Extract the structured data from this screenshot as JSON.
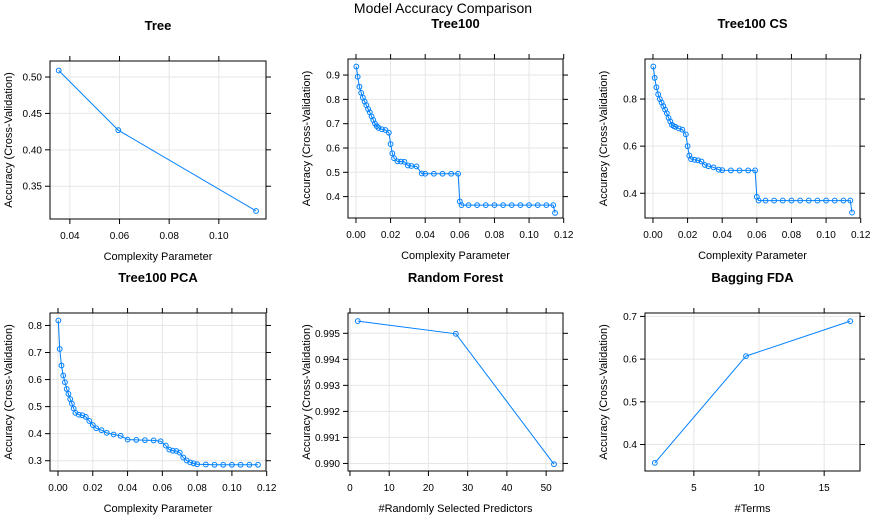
{
  "title": "Model Accuracy Comparison",
  "colors": {
    "line": "#0080FF",
    "point": "#0080FF",
    "grid": "#E6E6E6",
    "frame": "#000000"
  },
  "chart_data": [
    {
      "type": "line",
      "title": "Tree",
      "xlabel": "Complexity Parameter",
      "ylabel": "Accuracy (Cross-Validation)",
      "xlim": [
        0.032,
        0.119
      ],
      "ylim": [
        0.305,
        0.522
      ],
      "xticks": [
        0.04,
        0.06,
        0.08,
        0.1
      ],
      "yticks": [
        0.35,
        0.4,
        0.45,
        0.5
      ],
      "x": [
        0.0355,
        0.0595,
        0.115
      ],
      "y": [
        0.509,
        0.427,
        0.316
      ]
    },
    {
      "type": "line",
      "title": "Tree100",
      "xlabel": "Complexity Parameter",
      "ylabel": "Accuracy (Cross-Validation)",
      "xlim": [
        -0.0046,
        0.1196
      ],
      "ylim": [
        0.312,
        0.966
      ],
      "xticks": [
        0.0,
        0.02,
        0.04,
        0.06,
        0.08,
        0.1,
        0.12
      ],
      "yticks": [
        0.4,
        0.5,
        0.6,
        0.7,
        0.8,
        0.9
      ],
      "x": [
        0.0002,
        0.001,
        0.002,
        0.003,
        0.004,
        0.005,
        0.006,
        0.007,
        0.008,
        0.009,
        0.01,
        0.011,
        0.012,
        0.013,
        0.015,
        0.017,
        0.019,
        0.02,
        0.021,
        0.022,
        0.024,
        0.026,
        0.028,
        0.03,
        0.032,
        0.035,
        0.038,
        0.04,
        0.045,
        0.05,
        0.055,
        0.059,
        0.06,
        0.061,
        0.065,
        0.07,
        0.075,
        0.08,
        0.085,
        0.09,
        0.095,
        0.1,
        0.105,
        0.11,
        0.114,
        0.115
      ],
      "y": [
        0.935,
        0.893,
        0.852,
        0.827,
        0.807,
        0.791,
        0.776,
        0.76,
        0.747,
        0.73,
        0.715,
        0.7,
        0.69,
        0.683,
        0.677,
        0.674,
        0.663,
        0.616,
        0.578,
        0.558,
        0.545,
        0.544,
        0.543,
        0.528,
        0.526,
        0.524,
        0.495,
        0.494,
        0.494,
        0.494,
        0.494,
        0.494,
        0.38,
        0.365,
        0.365,
        0.365,
        0.365,
        0.365,
        0.365,
        0.365,
        0.365,
        0.365,
        0.365,
        0.365,
        0.365,
        0.333
      ]
    },
    {
      "type": "line",
      "title": "Tree100 CS",
      "xlabel": "Complexity Parameter",
      "ylabel": "Accuracy (Cross-Validation)",
      "xlim": [
        -0.0046,
        0.1196
      ],
      "ylim": [
        0.295,
        0.97
      ],
      "xticks": [
        0.0,
        0.02,
        0.04,
        0.06,
        0.08,
        0.1,
        0.12
      ],
      "yticks": [
        0.4,
        0.6,
        0.8
      ],
      "x": [
        0.0002,
        0.001,
        0.002,
        0.003,
        0.004,
        0.005,
        0.006,
        0.007,
        0.008,
        0.009,
        0.01,
        0.011,
        0.012,
        0.013,
        0.015,
        0.017,
        0.019,
        0.02,
        0.021,
        0.022,
        0.024,
        0.026,
        0.028,
        0.03,
        0.032,
        0.035,
        0.038,
        0.04,
        0.045,
        0.05,
        0.055,
        0.059,
        0.06,
        0.061,
        0.065,
        0.07,
        0.075,
        0.08,
        0.085,
        0.09,
        0.095,
        0.1,
        0.105,
        0.11,
        0.114,
        0.115
      ],
      "y": [
        0.938,
        0.89,
        0.85,
        0.82,
        0.8,
        0.785,
        0.77,
        0.755,
        0.74,
        0.72,
        0.705,
        0.69,
        0.685,
        0.682,
        0.675,
        0.67,
        0.65,
        0.6,
        0.56,
        0.545,
        0.542,
        0.54,
        0.535,
        0.52,
        0.515,
        0.51,
        0.5,
        0.498,
        0.497,
        0.497,
        0.497,
        0.497,
        0.385,
        0.369,
        0.369,
        0.369,
        0.369,
        0.369,
        0.369,
        0.369,
        0.369,
        0.369,
        0.369,
        0.369,
        0.369,
        0.318
      ]
    },
    {
      "type": "line",
      "title": "Tree100 PCA",
      "xlabel": "Complexity Parameter",
      "ylabel": "Accuracy (Cross-Validation)",
      "xlim": [
        -0.0046,
        0.1196
      ],
      "ylim": [
        0.262,
        0.846
      ],
      "xticks": [
        0.0,
        0.02,
        0.04,
        0.06,
        0.08,
        0.1,
        0.12
      ],
      "yticks": [
        0.3,
        0.4,
        0.5,
        0.6,
        0.7,
        0.8
      ],
      "x": [
        0.0002,
        0.001,
        0.002,
        0.003,
        0.004,
        0.005,
        0.006,
        0.007,
        0.008,
        0.009,
        0.01,
        0.012,
        0.014,
        0.016,
        0.018,
        0.02,
        0.022,
        0.025,
        0.028,
        0.032,
        0.036,
        0.04,
        0.045,
        0.05,
        0.055,
        0.059,
        0.062,
        0.064,
        0.066,
        0.068,
        0.07,
        0.072,
        0.074,
        0.076,
        0.078,
        0.08,
        0.085,
        0.09,
        0.095,
        0.1,
        0.105,
        0.11,
        0.115
      ],
      "y": [
        0.818,
        0.713,
        0.652,
        0.615,
        0.59,
        0.565,
        0.547,
        0.528,
        0.511,
        0.493,
        0.477,
        0.47,
        0.468,
        0.462,
        0.447,
        0.432,
        0.42,
        0.413,
        0.403,
        0.397,
        0.392,
        0.378,
        0.377,
        0.376,
        0.375,
        0.372,
        0.356,
        0.341,
        0.337,
        0.336,
        0.33,
        0.312,
        0.301,
        0.294,
        0.29,
        0.287,
        0.286,
        0.285,
        0.285,
        0.285,
        0.285,
        0.285,
        0.285
      ]
    },
    {
      "type": "line",
      "title": "Random Forest",
      "xlabel": "#Randomly Selected Predictors",
      "ylabel": "Accuracy (Cross-Validation)",
      "xlim": [
        -0.5,
        54.3
      ],
      "ylim": [
        0.98971,
        0.99578
      ],
      "xticks": [
        0,
        10,
        20,
        30,
        40,
        50
      ],
      "yticks": [
        0.99,
        0.991,
        0.992,
        0.993,
        0.994,
        0.995
      ],
      "x": [
        2,
        27,
        52
      ],
      "y": [
        0.99547,
        0.99498,
        0.98997
      ]
    },
    {
      "type": "line",
      "title": "Bagging FDA",
      "xlabel": "#Terms",
      "ylabel": "Accuracy (Cross-Validation)",
      "xlim": [
        1.25,
        17.75
      ],
      "ylim": [
        0.338,
        0.708
      ],
      "xticks": [
        5,
        10,
        15
      ],
      "yticks": [
        0.4,
        0.5,
        0.6,
        0.7
      ],
      "x": [
        2,
        9,
        17
      ],
      "y": [
        0.357,
        0.607,
        0.689
      ]
    }
  ]
}
